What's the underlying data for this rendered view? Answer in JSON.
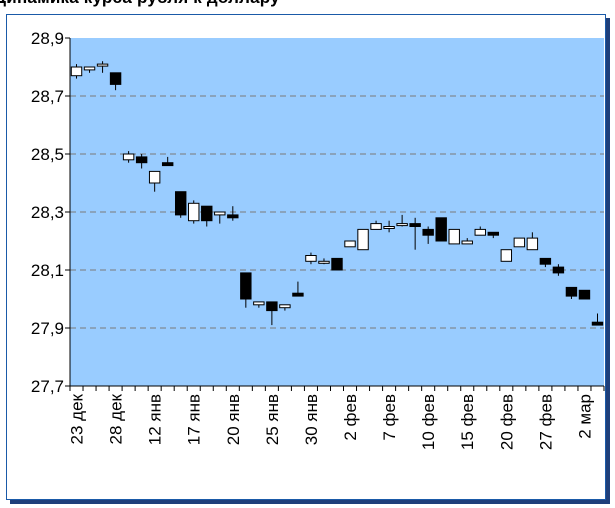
{
  "title": "Динамика курса рубля к доллару",
  "colors": {
    "plot_bg": "#99ccff",
    "grid": "#7a7a7a",
    "up_body": "#ffffff",
    "down_body": "#000000",
    "frame": "#1a5aa8",
    "shadow": "#1f3f7a"
  },
  "chart_data": {
    "type": "candlestick",
    "title": "",
    "xlabel": "",
    "ylabel": "",
    "ylim": [
      27.7,
      28.9
    ],
    "yticks": [
      "27,7",
      "27,9",
      "28,1",
      "28,3",
      "28,5",
      "28,7",
      "28,9"
    ],
    "ytick_values": [
      27.7,
      27.9,
      28.1,
      28.3,
      28.5,
      28.7,
      28.9
    ],
    "grid": "horizontal dashed",
    "xtick_labels": [
      "23 дек",
      "28 дек",
      "12 янв",
      "17 янв",
      "20 янв",
      "25 янв",
      "30 янв",
      "2 фев",
      "7 фев",
      "10 фев",
      "15 фев",
      "20 фев",
      "27 фев",
      "2 мар"
    ],
    "xtick_positions": [
      0,
      3,
      6,
      9,
      12,
      15,
      18,
      21,
      24,
      27,
      30,
      33,
      36,
      39
    ],
    "candles": [
      {
        "i": 0,
        "open": 28.77,
        "high": 28.81,
        "low": 28.76,
        "close": 28.8
      },
      {
        "i": 1,
        "open": 28.79,
        "high": 28.8,
        "low": 28.78,
        "close": 28.8
      },
      {
        "i": 2,
        "open": 28.81,
        "high": 28.82,
        "low": 28.78,
        "close": 28.81
      },
      {
        "i": 3,
        "open": 28.78,
        "high": 28.78,
        "low": 28.72,
        "close": 28.74
      },
      {
        "i": 4,
        "open": 28.48,
        "high": 28.51,
        "low": 28.47,
        "close": 28.5
      },
      {
        "i": 5,
        "open": 28.49,
        "high": 28.5,
        "low": 28.45,
        "close": 28.47
      },
      {
        "i": 6,
        "open": 28.4,
        "high": 28.44,
        "low": 28.37,
        "close": 28.44
      },
      {
        "i": 7,
        "open": 28.47,
        "high": 28.49,
        "low": 28.46,
        "close": 28.46
      },
      {
        "i": 8,
        "open": 28.37,
        "high": 28.37,
        "low": 28.28,
        "close": 28.29
      },
      {
        "i": 9,
        "open": 28.27,
        "high": 28.34,
        "low": 28.26,
        "close": 28.33
      },
      {
        "i": 10,
        "open": 28.32,
        "high": 28.32,
        "low": 28.25,
        "close": 28.27
      },
      {
        "i": 11,
        "open": 28.29,
        "high": 28.3,
        "low": 28.26,
        "close": 28.3
      },
      {
        "i": 12,
        "open": 28.29,
        "high": 28.32,
        "low": 28.27,
        "close": 28.28
      },
      {
        "i": 13,
        "open": 28.09,
        "high": 28.09,
        "low": 27.97,
        "close": 28.0
      },
      {
        "i": 14,
        "open": 27.98,
        "high": 27.99,
        "low": 27.97,
        "close": 27.99
      },
      {
        "i": 15,
        "open": 27.99,
        "high": 27.99,
        "low": 27.91,
        "close": 27.96
      },
      {
        "i": 16,
        "open": 27.97,
        "high": 27.98,
        "low": 27.96,
        "close": 27.98
      },
      {
        "i": 17,
        "open": 28.02,
        "high": 28.06,
        "low": 28.01,
        "close": 28.01
      },
      {
        "i": 18,
        "open": 28.13,
        "high": 28.16,
        "low": 28.12,
        "close": 28.15
      },
      {
        "i": 19,
        "open": 28.13,
        "high": 28.14,
        "low": 28.12,
        "close": 28.13
      },
      {
        "i": 20,
        "open": 28.14,
        "high": 28.14,
        "low": 28.1,
        "close": 28.1
      },
      {
        "i": 21,
        "open": 28.18,
        "high": 28.2,
        "low": 28.18,
        "close": 28.2
      },
      {
        "i": 22,
        "open": 28.17,
        "high": 28.24,
        "low": 28.17,
        "close": 28.24
      },
      {
        "i": 23,
        "open": 28.24,
        "high": 28.27,
        "low": 28.24,
        "close": 28.26
      },
      {
        "i": 24,
        "open": 28.25,
        "high": 28.27,
        "low": 28.23,
        "close": 28.25
      },
      {
        "i": 25,
        "open": 28.26,
        "high": 28.29,
        "low": 28.25,
        "close": 28.26
      },
      {
        "i": 26,
        "open": 28.26,
        "high": 28.28,
        "low": 28.17,
        "close": 28.25
      },
      {
        "i": 27,
        "open": 28.24,
        "high": 28.25,
        "low": 28.19,
        "close": 28.22
      },
      {
        "i": 28,
        "open": 28.28,
        "high": 28.28,
        "low": 28.2,
        "close": 28.2
      },
      {
        "i": 29,
        "open": 28.19,
        "high": 28.24,
        "low": 28.19,
        "close": 28.24
      },
      {
        "i": 30,
        "open": 28.19,
        "high": 28.21,
        "low": 28.19,
        "close": 28.2
      },
      {
        "i": 31,
        "open": 28.22,
        "high": 28.25,
        "low": 28.22,
        "close": 28.24
      },
      {
        "i": 32,
        "open": 28.23,
        "high": 28.23,
        "low": 28.21,
        "close": 28.22
      },
      {
        "i": 33,
        "open": 28.13,
        "high": 28.17,
        "low": 28.13,
        "close": 28.17
      },
      {
        "i": 34,
        "open": 28.18,
        "high": 28.21,
        "low": 28.18,
        "close": 28.21
      },
      {
        "i": 35,
        "open": 28.17,
        "high": 28.23,
        "low": 28.17,
        "close": 28.21
      },
      {
        "i": 36,
        "open": 28.14,
        "high": 28.14,
        "low": 28.11,
        "close": 28.12
      },
      {
        "i": 37,
        "open": 28.11,
        "high": 28.12,
        "low": 28.08,
        "close": 28.09
      },
      {
        "i": 38,
        "open": 28.04,
        "high": 28.04,
        "low": 28.0,
        "close": 28.01
      },
      {
        "i": 39,
        "open": 28.03,
        "high": 28.03,
        "low": 28.0,
        "close": 28.0
      },
      {
        "i": 40,
        "open": 27.92,
        "high": 27.95,
        "low": 27.91,
        "close": 27.91
      }
    ],
    "n_slots": 41
  }
}
